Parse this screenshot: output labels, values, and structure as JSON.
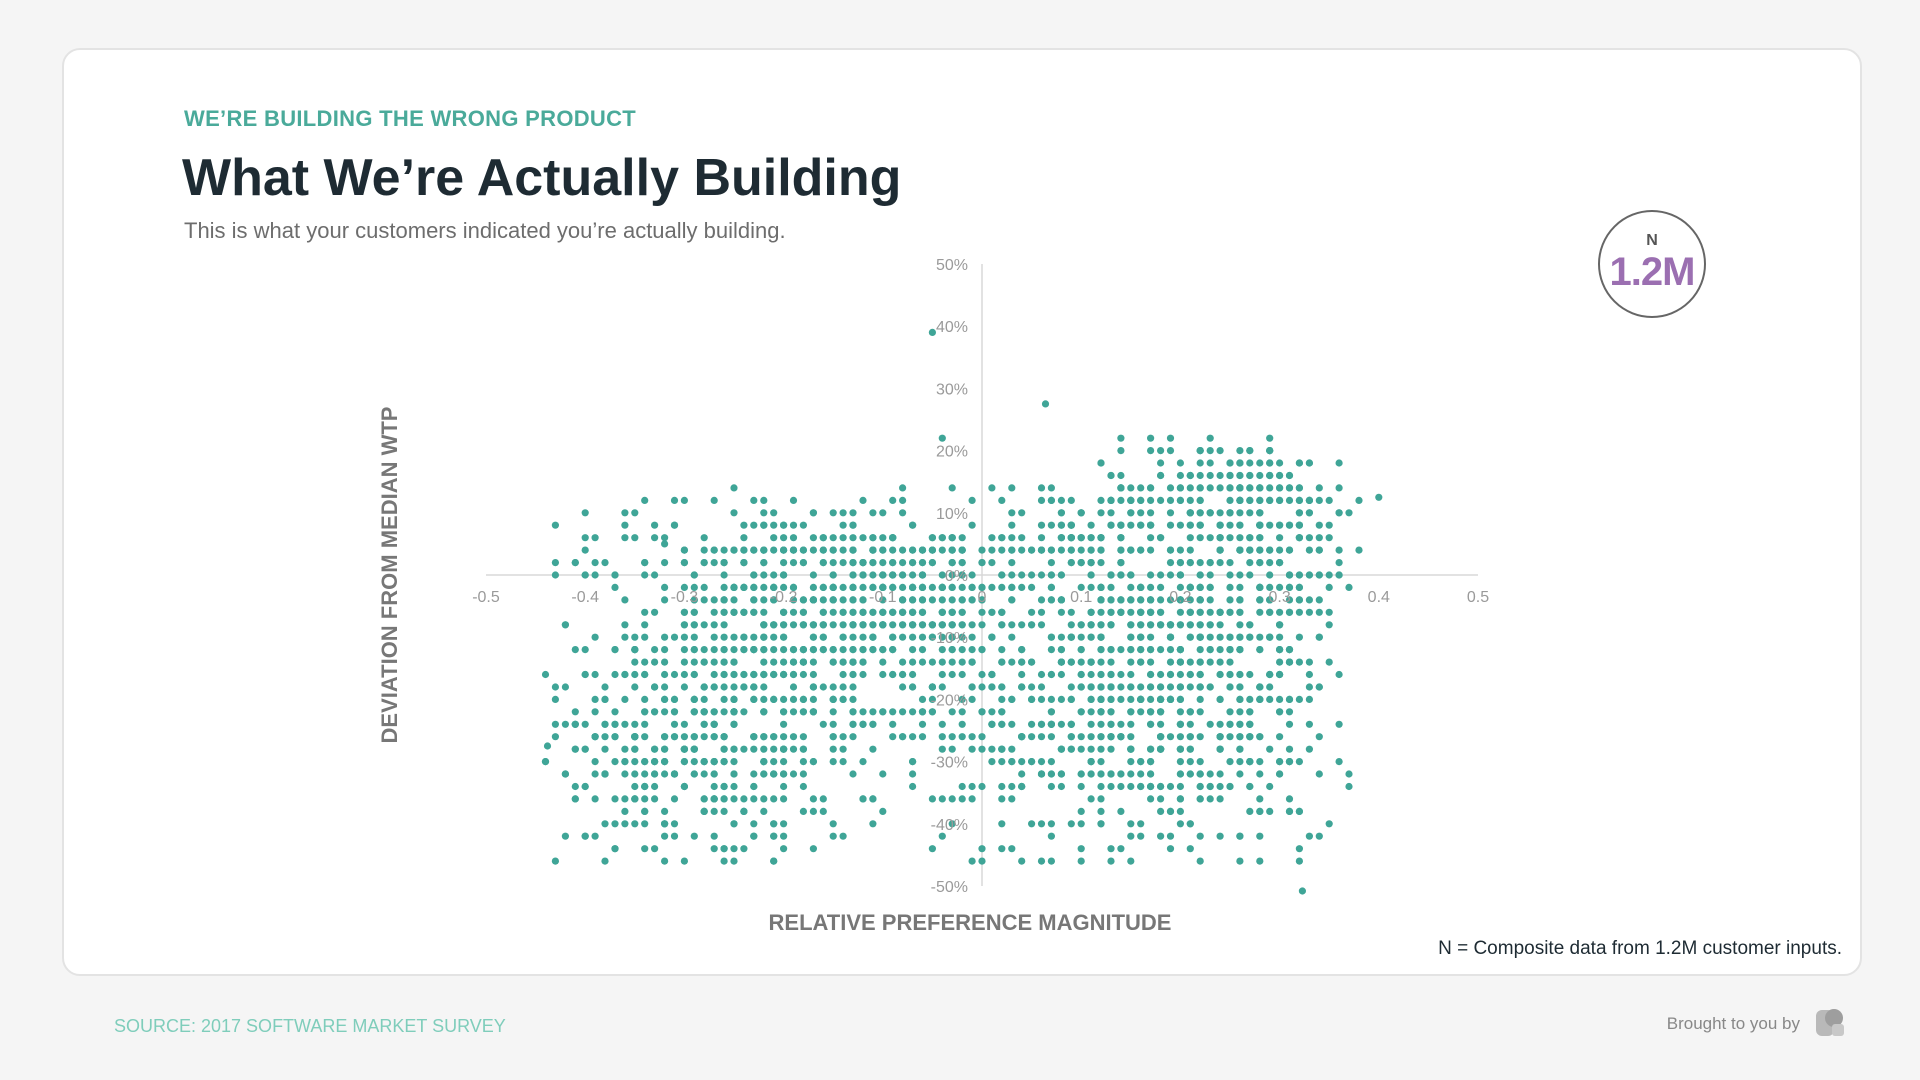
{
  "header": {
    "eyebrow": "WE’RE BUILDING THE WRONG PRODUCT",
    "title": "What We’re Actually Building",
    "subtitle": "This is what your customers indicated you’re actually building."
  },
  "badge": {
    "label": "N",
    "value": "1.2M"
  },
  "footnote": "N = Composite data from 1.2M customer inputs.",
  "footer": {
    "source": "SOURCE: 2017 SOFTWARE MARKET SURVEY",
    "brought_by": "Brought to you by",
    "logo_icon": "brand-logo-icon"
  },
  "colors": {
    "accent": "#4aaa9a",
    "point": "#3fa597",
    "badge_value": "#9b6fb1",
    "title": "#1e2b33"
  },
  "chart_data": {
    "type": "scatter",
    "title": "",
    "xlabel": "RELATIVE PREFERENCE MAGNITUDE",
    "ylabel": "DEVIATION FROM MEDIAN WTP",
    "xlim": [
      -0.5,
      0.5
    ],
    "ylim": [
      -0.5,
      0.5
    ],
    "x_ticks": [
      -0.5,
      -0.4,
      -0.3,
      -0.2,
      -0.1,
      0,
      0.1,
      0.2,
      0.3,
      0.4,
      0.5
    ],
    "x_tick_labels": [
      "-0.5",
      "-0.4",
      "-0.3",
      "-0.2",
      "-0.1",
      "0",
      "0.1",
      "0.2",
      "0.3",
      "0.4",
      "0.5"
    ],
    "y_ticks": [
      0.5,
      0.4,
      0.3,
      0.2,
      0.1,
      0,
      -0.1,
      -0.2,
      -0.3,
      -0.4,
      -0.5
    ],
    "y_tick_labels": [
      "50%",
      "40%",
      "30%",
      "20%",
      "10%",
      "0%",
      "-10%",
      "-20%",
      "-30%",
      "-40%",
      "-50%"
    ],
    "grid": false,
    "axes_through_origin": true,
    "series": [
      {
        "clusters": [
          {
            "cx": -0.28,
            "cy": -0.27,
            "sx": 0.09,
            "sy": 0.11,
            "n": 520
          },
          {
            "cx": -0.16,
            "cy": -0.08,
            "sx": 0.09,
            "sy": 0.09,
            "n": 300
          },
          {
            "cx": -0.22,
            "cy": 0.02,
            "sx": 0.11,
            "sy": 0.06,
            "n": 180
          },
          {
            "cx": -0.05,
            "cy": -0.03,
            "sx": 0.05,
            "sy": 0.06,
            "n": 160
          },
          {
            "cx": 0.07,
            "cy": -0.22,
            "sx": 0.09,
            "sy": 0.12,
            "n": 380
          },
          {
            "cx": 0.22,
            "cy": -0.25,
            "sx": 0.07,
            "sy": 0.12,
            "n": 300
          },
          {
            "cx": 0.19,
            "cy": -0.08,
            "sx": 0.06,
            "sy": 0.07,
            "n": 220
          },
          {
            "cx": 0.25,
            "cy": 0.11,
            "sx": 0.07,
            "sy": 0.06,
            "n": 260
          },
          {
            "cx": 0.1,
            "cy": 0.05,
            "sx": 0.06,
            "sy": 0.06,
            "n": 120
          },
          {
            "cx": 0.3,
            "cy": -0.05,
            "sx": 0.03,
            "sy": 0.1,
            "n": 80
          }
        ],
        "extra_points": [
          [
            -0.4,
            0.04
          ],
          [
            -0.34,
            0.02
          ],
          [
            -0.32,
            0.05
          ],
          [
            0.064,
            0.275
          ],
          [
            0.4,
            0.125
          ],
          [
            0.323,
            -0.508
          ],
          [
            -0.438,
            -0.275
          ],
          [
            -0.42,
            -0.32
          ],
          [
            -0.05,
            0.39
          ]
        ],
        "bounds": {
          "xmin": -0.44,
          "xmax": 0.39,
          "ymin": -0.47,
          "ymax": 0.23
        }
      }
    ]
  }
}
